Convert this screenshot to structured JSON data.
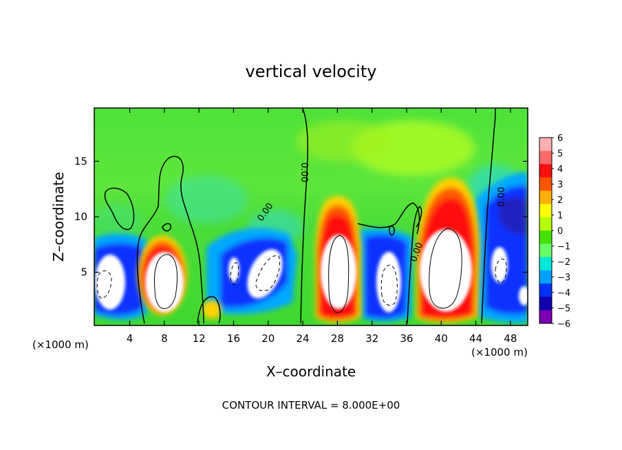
{
  "chart_data": {
    "type": "heatmap",
    "title": "vertical velocity",
    "xlabel": "X–coordinate",
    "ylabel": "Z–coordinate",
    "x_unit_left": "(×1000 m)",
    "x_unit_right": "(×1000 m)",
    "footer": "CONTOUR INTERVAL = 8.000E+00",
    "xlim": [
      -0.1,
      50
    ],
    "ylim": [
      0.2,
      19.8
    ],
    "x_ticks": [
      4,
      8,
      12,
      16,
      20,
      24,
      28,
      32,
      36,
      40,
      44,
      48
    ],
    "y_ticks": [
      5,
      10,
      15
    ],
    "colorbar": {
      "levels": [
        6,
        5,
        4,
        3,
        2,
        1,
        0,
        -1,
        -2,
        -3,
        -4,
        -5,
        -6
      ],
      "colors": [
        "#ffb0b0",
        "#ff6a6a",
        "#ff0e0e",
        "#ff5500",
        "#ffb000",
        "#ffff00",
        "#b4ff00",
        "#42e000",
        "#66ff66",
        "#00e8d8",
        "#00a0ff",
        "#0030ff",
        "#1000b0",
        "#7a00b0"
      ]
    },
    "contour_labels": [
      {
        "text": "0.00",
        "x": 19.7,
        "y": 10.4,
        "angle": -55
      },
      {
        "text": "0.00",
        "x": 24.1,
        "y": 14.0,
        "angle": 90
      },
      {
        "text": "0.00",
        "x": 47.0,
        "y": 11.8,
        "angle": -90
      },
      {
        "text": "0.00",
        "x": 37.2,
        "y": 6.8,
        "angle": -70
      }
    ],
    "updraft_cores": [
      {
        "x": 8.0,
        "y": 4.5,
        "rx": 2.0,
        "ry": 3.4
      },
      {
        "x": 28.0,
        "y": 5.0,
        "rx": 2.0,
        "ry": 3.6
      },
      {
        "x": 41.0,
        "y": 5.5,
        "rx": 2.8,
        "ry": 4.0
      }
    ],
    "downdraft_cores": [
      {
        "x": 1.8,
        "y": 4.0,
        "rx": 1.8,
        "ry": 2.6
      },
      {
        "x": 18.5,
        "y": 5.0,
        "rx": 2.4,
        "ry": 2.7
      },
      {
        "x": 34.5,
        "y": 3.8,
        "rx": 1.6,
        "ry": 3.0
      },
      {
        "x": 47.5,
        "y": 4.5,
        "rx": 1.3,
        "ry": 2.0
      },
      {
        "x": 49.6,
        "y": 2.8,
        "rx": 0.9,
        "ry": 1.6
      }
    ]
  }
}
